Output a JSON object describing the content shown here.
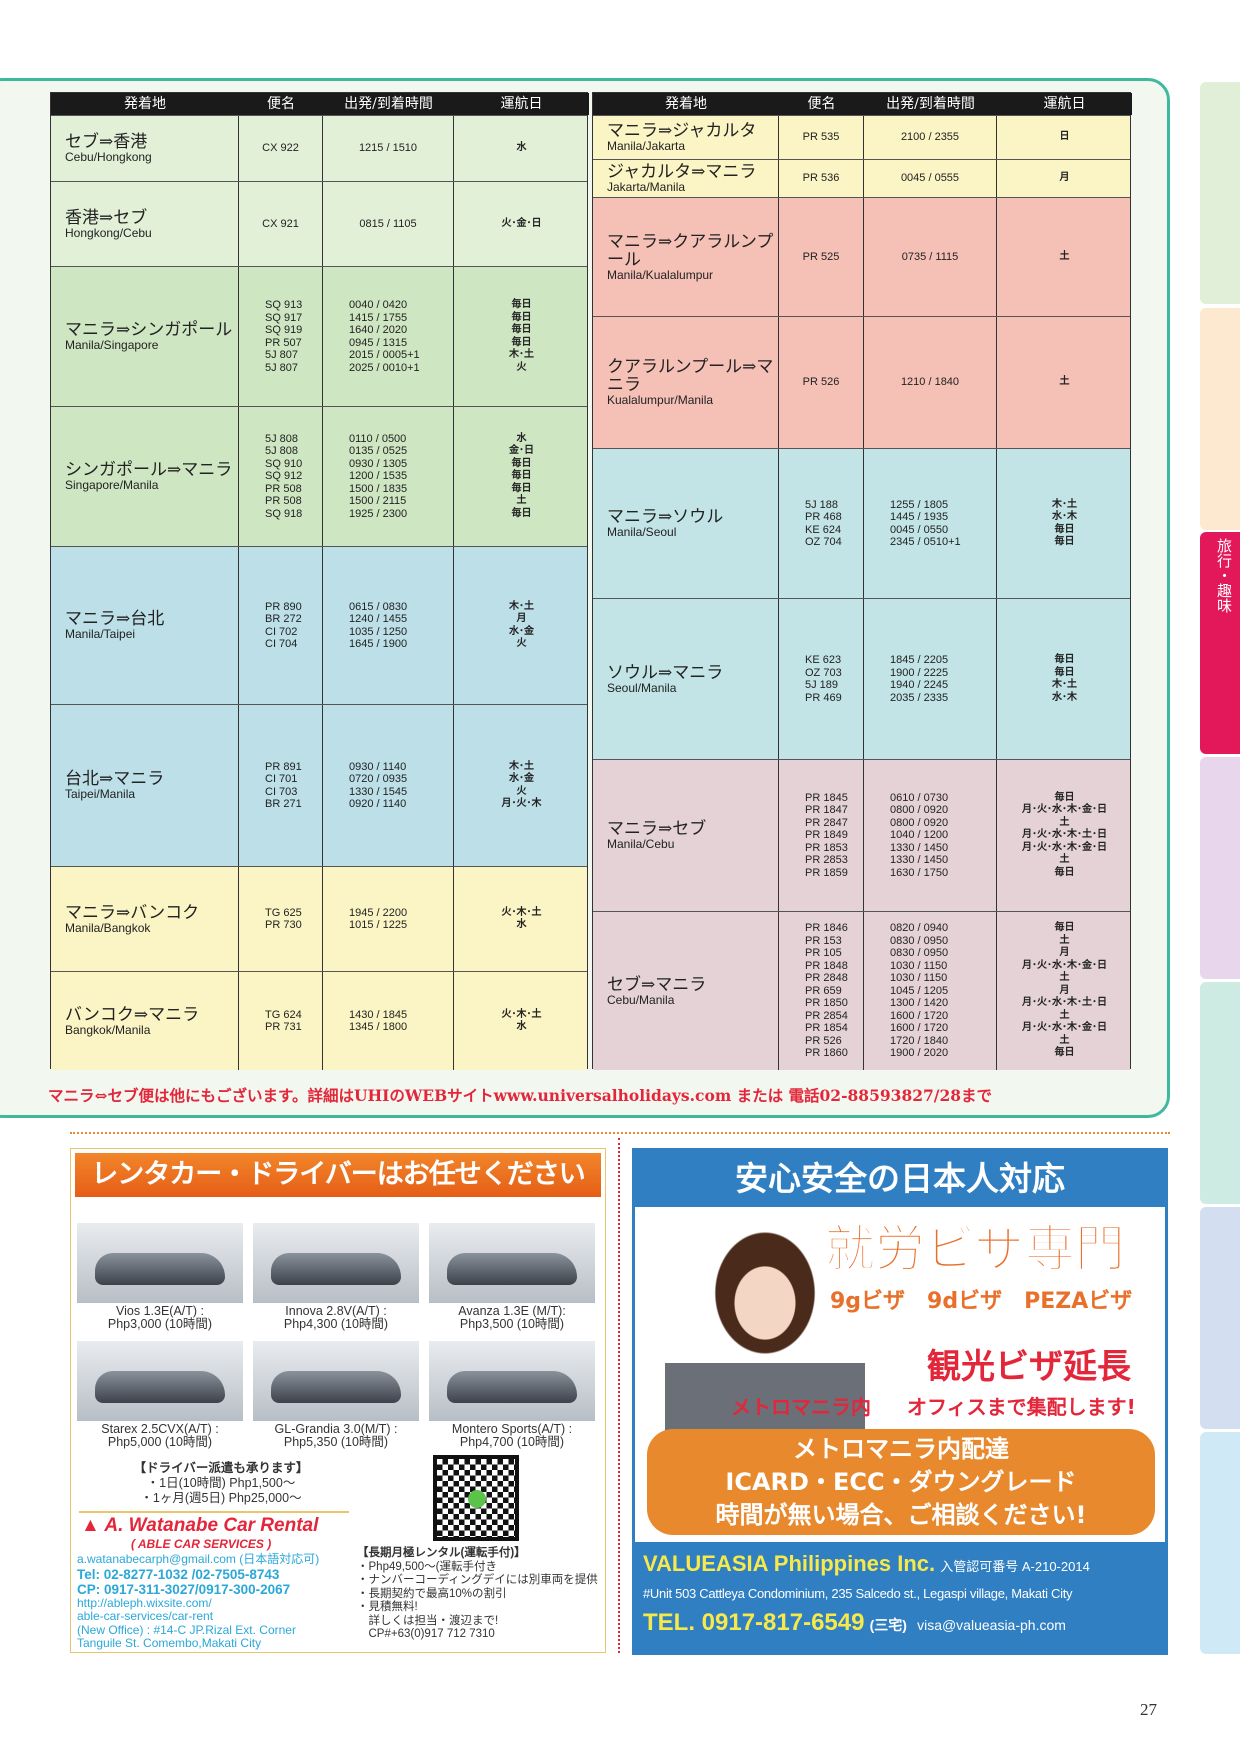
{
  "headers": [
    "発着地",
    "便名",
    "出発/到着時間",
    "運航日"
  ],
  "colors": {
    "accent": "#3fb8a0",
    "green1": "#e3f0d8",
    "green2": "#cfe6c3",
    "blue": "#bcdfe8",
    "yellow": "#fbf4c4",
    "pink": "#f5c0b6",
    "teal": "#c2e4e6",
    "mauve": "#e4d2d6",
    "red": "#e4263a",
    "orange": "#e8702a",
    "blueAd": "#2f7fc2",
    "activeTab": "#e3185a"
  },
  "left": [
    {
      "ja": "セブ⇒香港",
      "en": "Cebu/Hongkong",
      "c": "green1",
      "f": [
        "CX 922"
      ],
      "t": [
        "1215 / 1510"
      ],
      "d": [
        "水"
      ]
    },
    {
      "ja": "香港⇒セブ",
      "en": "Hongkong/Cebu",
      "c": "green1",
      "f": [
        "CX 921"
      ],
      "t": [
        "0815 / 1105"
      ],
      "d": [
        "火･金･日"
      ]
    },
    {
      "ja": "マニラ⇒シンガポール",
      "en": "Manila/Singapore",
      "c": "green2",
      "f": [
        "SQ 913",
        "SQ 917",
        "SQ 919",
        "PR 507",
        "5J 807",
        "5J 807"
      ],
      "t": [
        "0040 / 0420",
        "1415 / 1755",
        "1640 / 2020",
        "0945 / 1315",
        "2015 / 0005+1",
        "2025 / 0010+1"
      ],
      "d": [
        "毎日",
        "毎日",
        "毎日",
        "毎日",
        "木･土",
        "火"
      ]
    },
    {
      "ja": "シンガポール⇒マニラ",
      "en": "Singapore/Manila",
      "c": "green2",
      "f": [
        "5J 808",
        "5J 808",
        "SQ 910",
        "SQ 912",
        "PR 508",
        "PR 508",
        "SQ 918"
      ],
      "t": [
        "0110 / 0500",
        "0135 / 0525",
        "0930 / 1305",
        "1200 / 1535",
        "1500 / 1835",
        "1500 / 2115",
        "1925 / 2300"
      ],
      "d": [
        "水",
        "金･日",
        "毎日",
        "毎日",
        "毎日",
        "土",
        "毎日"
      ]
    },
    {
      "ja": "マニラ⇒台北",
      "en": "Manila/Taipei",
      "c": "blue",
      "f": [
        "PR 890",
        "BR 272",
        "CI 702",
        "CI 704"
      ],
      "t": [
        "0615 / 0830",
        "1240 / 1455",
        "1035 / 1250",
        "1645 / 1900"
      ],
      "d": [
        "木･土",
        "月",
        "水･金",
        "火"
      ]
    },
    {
      "ja": "台北⇒マニラ",
      "en": "Taipei/Manila",
      "c": "blue",
      "f": [
        "PR 891",
        "CI 701",
        "CI 703",
        "BR 271"
      ],
      "t": [
        "0930 / 1140",
        "0720 / 0935",
        "1330 / 1545",
        "0920 / 1140"
      ],
      "d": [
        "木･土",
        "水･金",
        "火",
        "月･火･木"
      ]
    },
    {
      "ja": "マニラ⇒バンコク",
      "en": "Manila/Bangkok",
      "c": "yellow",
      "f": [
        "TG 625",
        "PR 730"
      ],
      "t": [
        "1945 / 2200",
        "1015 / 1225"
      ],
      "d": [
        "火･木･土",
        "水"
      ]
    },
    {
      "ja": "バンコク⇒マニラ",
      "en": "Bangkok/Manila",
      "c": "yellow",
      "f": [
        "TG 624",
        "PR 731"
      ],
      "t": [
        "1430 / 1845",
        "1345 / 1800"
      ],
      "d": [
        "火･木･土",
        "水"
      ]
    }
  ],
  "right": [
    {
      "ja": "マニラ⇒ジャカルタ",
      "en": "Manila/Jakarta",
      "c": "yellow",
      "f": [
        "PR 535"
      ],
      "t": [
        "2100 / 2355"
      ],
      "d": [
        "日"
      ]
    },
    {
      "ja": "ジャカルタ⇒マニラ",
      "en": "Jakarta/Manila",
      "c": "yellow",
      "f": [
        "PR 536"
      ],
      "t": [
        "0045 / 0555"
      ],
      "d": [
        "月"
      ]
    },
    {
      "ja": "マニラ⇒クアラルンプール",
      "en": "Manila/Kualalumpur",
      "c": "pink",
      "f": [
        "PR 525"
      ],
      "t": [
        "0735 / 1115"
      ],
      "d": [
        "土"
      ]
    },
    {
      "ja": "クアラルンプール⇒マニラ",
      "en": "Kualalumpur/Manila",
      "c": "pink",
      "f": [
        "PR 526"
      ],
      "t": [
        "1210 / 1840"
      ],
      "d": [
        "土"
      ]
    },
    {
      "ja": "マニラ⇒ソウル",
      "en": "Manila/Seoul",
      "c": "teal",
      "f": [
        "5J 188",
        "PR 468",
        "KE 624",
        "OZ 704"
      ],
      "t": [
        "1255 / 1805",
        "1445 / 1935",
        "0045 / 0550",
        "2345 / 0510+1"
      ],
      "d": [
        "木･土",
        "水･木",
        "毎日",
        "毎日"
      ]
    },
    {
      "ja": "ソウル⇒マニラ",
      "en": "Seoul/Manila",
      "c": "teal",
      "f": [
        "KE 623",
        "OZ 703",
        "5J 189",
        "PR 469"
      ],
      "t": [
        "1845 / 2205",
        "1900 / 2225",
        "1940 / 2245",
        "2035 / 2335"
      ],
      "d": [
        "毎日",
        "毎日",
        "木･土",
        "水･木"
      ]
    },
    {
      "ja": "マニラ⇒セブ",
      "en": "Manila/Cebu",
      "c": "mauve",
      "f": [
        "PR 1845",
        "PR 1847",
        "PR 2847",
        "PR 1849",
        "PR 1853",
        "PR 2853",
        "PR 1859"
      ],
      "t": [
        "0610 / 0730",
        "0800 / 0920",
        "0800 / 0920",
        "1040 / 1200",
        "1330 / 1450",
        "1330 / 1450",
        "1630 / 1750"
      ],
      "d": [
        "毎日",
        "月･火･水･木･金･日",
        "土",
        "月･火･水･木･土･日",
        "月･火･水･木･金･日",
        "土",
        "毎日"
      ]
    },
    {
      "ja": "セブ⇒マニラ",
      "en": "Cebu/Manila",
      "c": "mauve",
      "f": [
        "PR 1846",
        "PR 153",
        "PR 105",
        "PR 1848",
        "PR 2848",
        "PR 659",
        "PR 1850",
        "PR 2854",
        "PR 1854",
        "PR 526",
        "PR 1860"
      ],
      "t": [
        "0820 / 0940",
        "0830 / 0950",
        "0830 / 0950",
        "1030 / 1150",
        "1030 / 1150",
        "1045 / 1205",
        "1300 / 1420",
        "1600 / 1720",
        "1600 / 1720",
        "1720 / 1840",
        "1900 / 2020"
      ],
      "d": [
        "毎日",
        "土",
        "月",
        "月･火･水･木･金･日",
        "土",
        "月",
        "月･火･水･木･土･日",
        "土",
        "月･火･水･木･金･日",
        "土",
        "毎日"
      ]
    }
  ],
  "note": "マニラ⇔セブ便は他にもございます。詳細はUHIのWEBサイトwww.universalholidays.com または 電話02-88593827/28まで",
  "side_tab_active": "旅行・趣味",
  "car_ad": {
    "title": "レンタカー・ドライバーはお任せください",
    "cars": [
      {
        "l1": "Vios 1.3E(A/T) :",
        "l2": "Php3,000 (10時間)"
      },
      {
        "l1": "Innova 2.8V(A/T) :",
        "l2": "Php4,300 (10時間)"
      },
      {
        "l1": "Avanza 1.3E (M/T):",
        "l2": "Php3,500 (10時間)"
      },
      {
        "l1": "Starex 2.5CVX(A/T) :",
        "l2": "Php5,000 (10時間)"
      },
      {
        "l1": "GL-Grandia 3.0(M/T) :",
        "l2": "Php5,350 (10時間)"
      },
      {
        "l1": "Montero Sports(A/T) :",
        "l2": "Php4,700 (10時間)"
      }
    ],
    "driver_title": "【ドライバー派遣も承ります】",
    "driver_lines": [
      "・1日(10時間) Php1,500～",
      "・1ヶ月(週5日) Php25,000～"
    ],
    "brand": "A. Watanabe Car Rental",
    "brand_sub": "( ABLE CAR SERVICES )",
    "email": "a.watanabecarph@gmail.com (日本語対応可)",
    "tel": "Tel: 02-8277-1032 /02-7505-8743",
    "cp": "CP: 0917-311-3027/0917-300-2067",
    "url1": "http://ableph.wixsite.com/",
    "url2": "able-car-services/car-rent",
    "addr1": "(New Office) : #14-C JP.Rizal Ext. Corner",
    "addr2": "Tanguile St. Comembo,Makati City",
    "long_title": "【長期月極レンタル(運転手付)】",
    "long_lines": [
      "・Php49,500～(運転手付き",
      "・ナンバーコーディングデイには別車両を提供",
      "・長期契約で最高10%の割引",
      "・見積無料!",
      "　詳しくは担当・渡辺まで!",
      "　CP#+63(0)917 712 7310"
    ]
  },
  "visa_ad": {
    "title": "安心安全の日本人対応",
    "main": "就労ビザ専門",
    "types": "9gビザ　9dビザ　PEZAビザ",
    "ext": "観光ビザ延長",
    "metro": "メトロマニラ内",
    "office": "オフィスまで集配します!",
    "box1": "メトロマニラ内配達",
    "box2": "ICARD・ECC・ダウングレード",
    "box3": "時間が無い場合、ご相談ください!",
    "company": "VALUEASIA Philippines Inc.",
    "license": "入管認可番号 A-210-2014",
    "address": "#Unit 503 Cattleya Condominium, 235 Salcedo st., Legaspi village, Makati City",
    "tel": "TEL. 0917-817-6549",
    "contact": "(三宅)",
    "email": "visa@valueasia-ph.com"
  },
  "page_number": "27"
}
